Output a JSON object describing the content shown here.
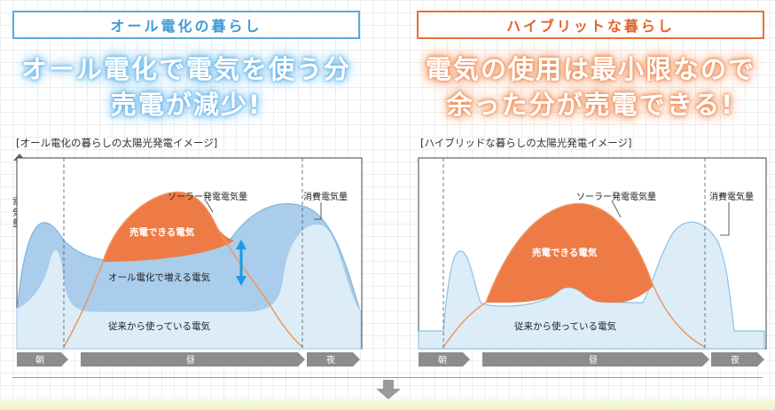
{
  "left_panel": {
    "title": "オール電化の暮らし",
    "headline_line1": "オール電化で電気を使う分",
    "headline_line2": "売電が減少!",
    "subtitle": "[オール電化の暮らしの太陽光発電イメージ]",
    "label_solar": "ソーラー発電電気量",
    "label_consumption": "消費電気量",
    "label_sell": "売電できる電気",
    "label_increase": "オール電化で増える電気",
    "label_base": "従来から使っている電気"
  },
  "right_panel": {
    "title": "ハイブリットな暮らし",
    "headline_line1": "電気の使用は最小限なので",
    "headline_line2": "余った分が売電できる!",
    "subtitle": "[ハイブリッドな暮らしの太陽光発電イメージ]",
    "label_solar": "ソーラー発電電気量",
    "label_consumption": "消費電気量",
    "label_sell": "売電できる電気",
    "label_base": "従来から使っている電気"
  },
  "axis": {
    "y_label_chars": [
      "電",
      "気",
      "量"
    ],
    "time_morning": "朝",
    "time_day": "昼",
    "time_night": "夜"
  },
  "colors": {
    "blue_accent": "#3f9ad6",
    "orange_accent": "#e2622b",
    "sell_fill": "#ee7a45",
    "consumption_fill": "#a9cdeb",
    "base_fill": "#dcedf8",
    "timeline_gray": "#8c8c8c"
  }
}
